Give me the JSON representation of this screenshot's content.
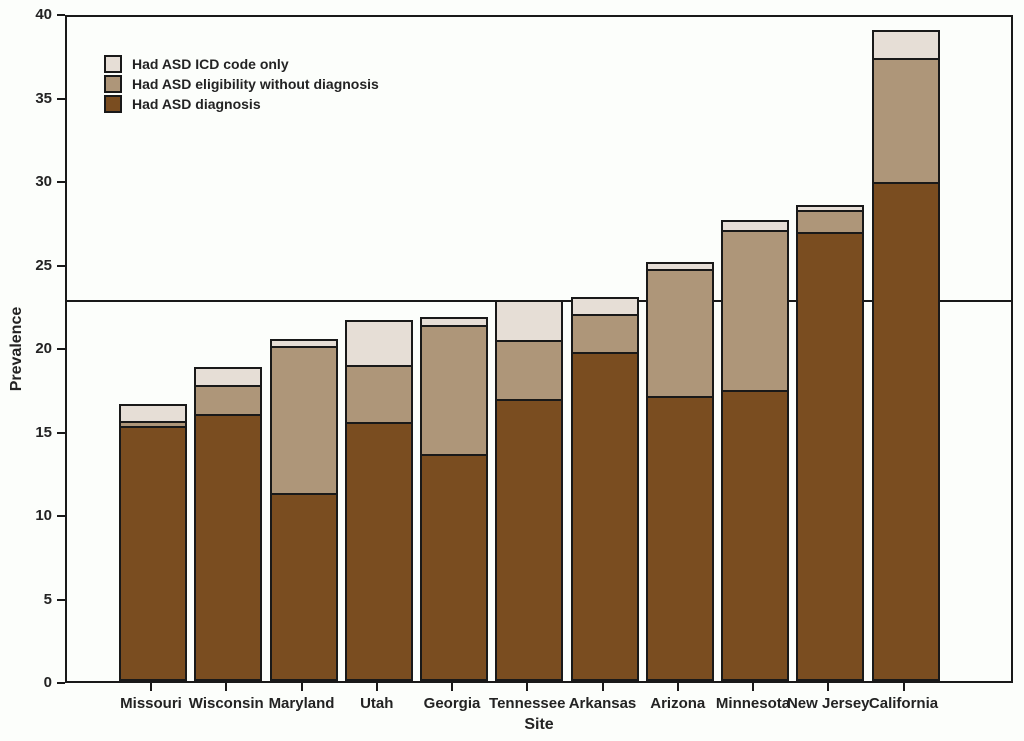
{
  "figure": {
    "kind": "static-statistical-figure",
    "background_color": "#fcfefb",
    "axis_color": "#191919",
    "text_color": "#232323"
  },
  "axes": {
    "y_title": "Prevalence",
    "x_title": "Site"
  },
  "chart_data": {
    "type": "bar",
    "stacked": true,
    "title": "",
    "xlabel": "Site",
    "ylabel": "Prevalence",
    "ylim": [
      0,
      40
    ],
    "yticks": [
      0,
      5,
      10,
      15,
      20,
      25,
      30,
      35,
      40
    ],
    "grid": false,
    "legend_position": "top-left",
    "categories": [
      "Missouri",
      "Wisconsin",
      "Maryland",
      "Utah",
      "Georgia",
      "Tennessee",
      "Arkansas",
      "Arizona",
      "Minnesota",
      "New Jersey",
      "California"
    ],
    "series": [
      {
        "name": "Had ASD diagnosis",
        "color": "#7a4d20",
        "values": [
          15.3,
          16.0,
          11.3,
          15.5,
          13.6,
          16.9,
          19.7,
          17.1,
          17.4,
          26.9,
          29.9
        ]
      },
      {
        "name": "Had ASD eligibility without diagnosis",
        "color": "#ae9679",
        "values": [
          0.3,
          1.7,
          8.8,
          3.4,
          7.7,
          3.5,
          2.3,
          7.6,
          9.6,
          1.3,
          7.4
        ]
      },
      {
        "name": "Had ASD ICD code only",
        "color": "#e6ded6",
        "values": [
          1.0,
          1.1,
          0.4,
          2.7,
          0.5,
          2.4,
          1.0,
          0.4,
          0.6,
          0.3,
          1.7
        ]
      }
    ],
    "totals": [
      16.6,
      18.8,
      20.5,
      21.6,
      21.8,
      22.8,
      23.0,
      25.1,
      27.6,
      28.5,
      39.0
    ],
    "reference_line": {
      "value": 23.0
    }
  }
}
